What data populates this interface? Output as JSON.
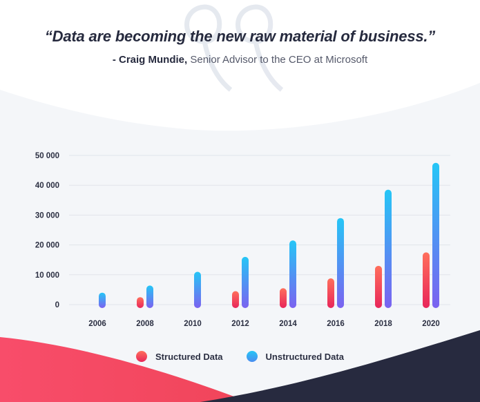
{
  "header": {
    "quote": "“Data are becoming the new raw material of business.”",
    "author": "- Craig Mundie,",
    "role": " Senior Advisor to the CEO at Microsoft"
  },
  "colors": {
    "structured_top": "#ff6f5c",
    "structured_bottom": "#e8265a",
    "unstructured_top": "#25c6f6",
    "unstructured_bottom": "#7b62f0",
    "text_dark": "#262a3e",
    "footer_dark": "#272a3f",
    "footer_red": "#f0455a"
  },
  "legend": {
    "structured": "Structured Data",
    "unstructured": "Unstructured Data"
  },
  "chart_data": {
    "type": "bar",
    "categories": [
      "2006",
      "2008",
      "2010",
      "2012",
      "2014",
      "2016",
      "2018",
      "2020"
    ],
    "series": [
      {
        "name": "Structured Data",
        "values": [
          null,
          2500,
          null,
          4500,
          5500,
          8800,
          13000,
          17500
        ]
      },
      {
        "name": "Unstructured Data",
        "values": [
          4000,
          6400,
          11000,
          16000,
          21500,
          29000,
          38500,
          47500
        ]
      }
    ],
    "yticks": [
      "0",
      "10 000",
      "20 000",
      "30 000",
      "40 000",
      "50 000"
    ],
    "ylim": [
      0,
      50000
    ],
    "grid": true,
    "legend_position": "bottom"
  }
}
